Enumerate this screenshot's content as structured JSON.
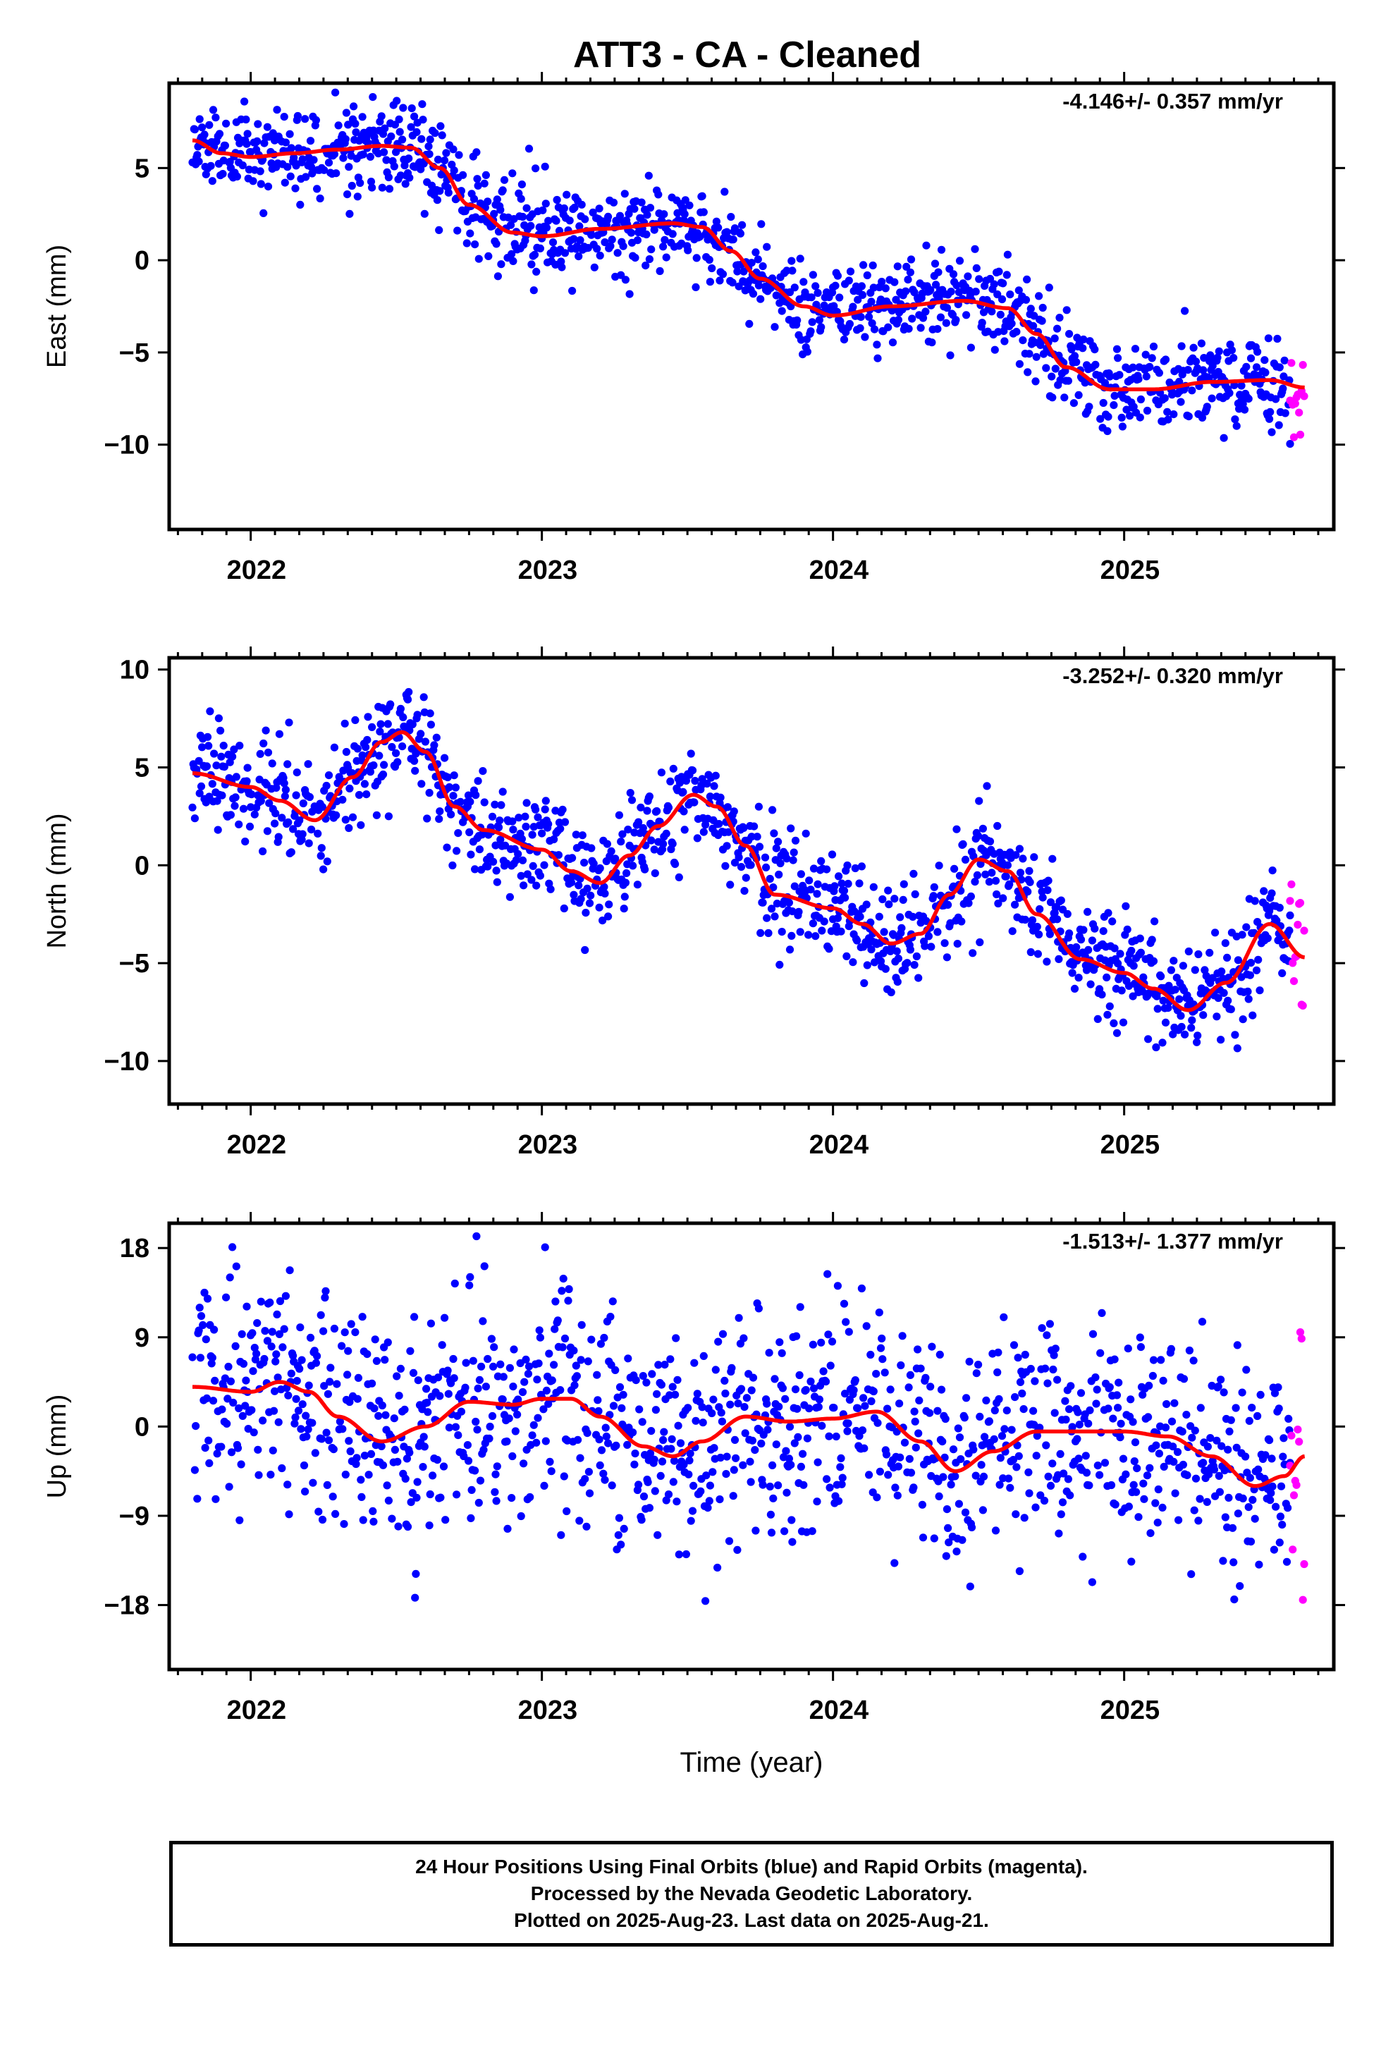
{
  "title": "ATT3  - CA - Cleaned",
  "chart_data": [
    {
      "type": "scatter",
      "ylabel": "East (mm)",
      "xlabel": "",
      "rate_label": "-4.146+/- 0.357 mm/yr",
      "xlim": [
        2021.72,
        2025.72
      ],
      "ylim": [
        -14.6,
        9.6
      ],
      "x_ticks": [
        2022,
        2023,
        2024,
        2025
      ],
      "y_ticks": [
        5,
        0,
        -5,
        -10
      ],
      "y_tick_labels": [
        "5",
        "0",
        "−5",
        "−10"
      ],
      "colors": {
        "final": "#0000ff",
        "rapid": "#ff00ff",
        "model": "#ff0000"
      },
      "model": {
        "x": [
          2021.8,
          2021.9,
          2022.0,
          2022.15,
          2022.3,
          2022.45,
          2022.55,
          2022.65,
          2022.75,
          2022.9,
          2023.0,
          2023.2,
          2023.45,
          2023.55,
          2023.65,
          2023.75,
          2023.9,
          2024.0,
          2024.2,
          2024.45,
          2024.6,
          2024.7,
          2024.8,
          2024.95,
          2025.1,
          2025.3,
          2025.5,
          2025.62
        ],
        "y": [
          6.5,
          5.8,
          5.6,
          5.8,
          6.0,
          6.2,
          6.1,
          5.0,
          3.0,
          1.5,
          1.3,
          1.7,
          2.0,
          1.8,
          0.5,
          -1.0,
          -2.5,
          -3.0,
          -2.5,
          -2.2,
          -2.6,
          -4.0,
          -5.8,
          -7.0,
          -7.0,
          -6.6,
          -6.5,
          -6.9
        ]
      },
      "scatter": {
        "spread": 1.25,
        "rapid_start": 2025.57,
        "rapid_spread": 3.0,
        "seed": 11
      }
    },
    {
      "type": "scatter",
      "ylabel": "North (mm)",
      "xlabel": "",
      "rate_label": "-3.252+/- 0.320 mm/yr",
      "xlim": [
        2021.72,
        2025.72
      ],
      "ylim": [
        -12.2,
        10.6
      ],
      "x_ticks": [
        2022,
        2023,
        2024,
        2025
      ],
      "y_ticks": [
        10,
        5,
        0,
        -5,
        -10
      ],
      "y_tick_labels": [
        "10",
        "5",
        "0",
        "−5",
        "−10"
      ],
      "colors": {
        "final": "#0000ff",
        "rapid": "#ff00ff",
        "model": "#ff0000"
      },
      "model": {
        "x": [
          2021.8,
          2022.0,
          2022.1,
          2022.22,
          2022.35,
          2022.45,
          2022.52,
          2022.6,
          2022.7,
          2022.8,
          2023.0,
          2023.1,
          2023.2,
          2023.3,
          2023.4,
          2023.52,
          2023.6,
          2023.7,
          2023.8,
          2024.0,
          2024.1,
          2024.2,
          2024.3,
          2024.4,
          2024.5,
          2024.6,
          2024.7,
          2024.85,
          2025.0,
          2025.1,
          2025.22,
          2025.35,
          2025.5,
          2025.62
        ],
        "y": [
          4.7,
          4.0,
          3.3,
          2.3,
          4.5,
          6.3,
          6.8,
          5.8,
          3.0,
          1.8,
          0.8,
          -0.3,
          -0.9,
          0.5,
          2.0,
          3.6,
          3.0,
          1.0,
          -1.5,
          -2.2,
          -3.0,
          -4.0,
          -3.5,
          -1.5,
          0.3,
          -0.3,
          -2.5,
          -4.8,
          -5.5,
          -6.3,
          -7.4,
          -6.0,
          -3.0,
          -4.7
        ]
      },
      "scatter": {
        "spread": 1.35,
        "rapid_start": 2025.57,
        "rapid_spread": 2.8,
        "seed": 23
      }
    },
    {
      "type": "scatter",
      "ylabel": "Up (mm)",
      "xlabel": "Time (year)",
      "rate_label": "-1.513+/- 1.377 mm/yr",
      "xlim": [
        2021.72,
        2025.72
      ],
      "ylim": [
        -24.5,
        20.5
      ],
      "x_ticks": [
        2022,
        2023,
        2024,
        2025
      ],
      "y_ticks": [
        18,
        9,
        0,
        -9,
        -18
      ],
      "y_tick_labels": [
        "18",
        "9",
        "0",
        "−9",
        "−18"
      ],
      "colors": {
        "final": "#0000ff",
        "rapid": "#ff00ff",
        "model": "#ff0000"
      },
      "model": {
        "x": [
          2021.8,
          2022.0,
          2022.1,
          2022.2,
          2022.3,
          2022.45,
          2022.6,
          2022.75,
          2022.9,
          2023.0,
          2023.1,
          2023.2,
          2023.35,
          2023.45,
          2023.55,
          2023.7,
          2023.85,
          2024.0,
          2024.15,
          2024.3,
          2024.42,
          2024.55,
          2024.7,
          2024.85,
          2025.0,
          2025.15,
          2025.3,
          2025.45,
          2025.55,
          2025.62
        ],
        "y": [
          4.0,
          3.5,
          4.5,
          3.5,
          1.0,
          -1.5,
          0.0,
          2.5,
          2.2,
          2.8,
          2.8,
          1.0,
          -2.0,
          -3.0,
          -1.5,
          1.0,
          0.5,
          0.8,
          1.5,
          -1.5,
          -4.5,
          -2.5,
          -0.5,
          -0.5,
          -0.5,
          -1.0,
          -3.0,
          -6.0,
          -5.0,
          -3.0
        ]
      },
      "scatter": {
        "spread": 5.5,
        "rapid_start": 2025.57,
        "rapid_spread": 9.0,
        "seed": 37
      }
    }
  ],
  "footer": {
    "line1": "24 Hour Positions Using Final Orbits (blue) and Rapid Orbits (magenta).",
    "line2": "Processed by the Nevada Geodetic Laboratory.",
    "line3": "Plotted on 2025-Aug-23. Last data on 2025-Aug-21."
  }
}
